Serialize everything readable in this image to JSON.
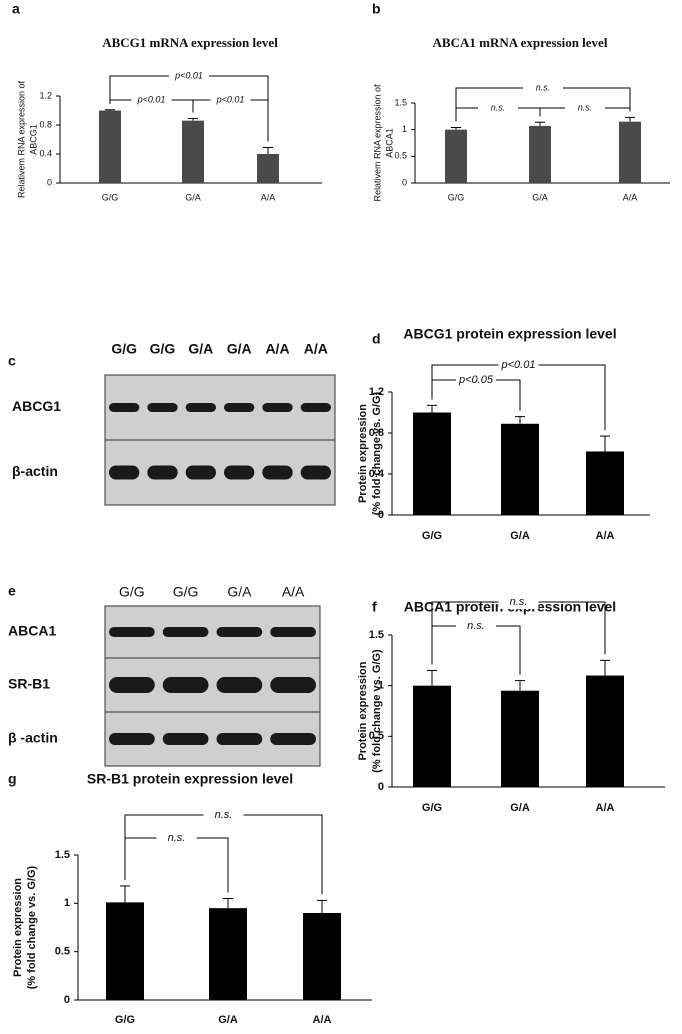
{
  "chart_data": [
    {
      "panel": "a",
      "type": "bar",
      "title": "ABCG1 mRNA expression level",
      "ylabel": [
        "Relativem RNA expression of",
        "ABCG1"
      ],
      "categories": [
        "G/G",
        "G/A",
        "A/A"
      ],
      "values": [
        1.0,
        0.86,
        0.4
      ],
      "errors": [
        0.01,
        0.03,
        0.09
      ],
      "color": "#4a4a4a",
      "ylim": [
        0,
        1.2
      ],
      "yticks": [
        0,
        0.4,
        0.8,
        1.2
      ],
      "comparisons": [
        {
          "label": "p<0.01",
          "from": 0,
          "to": 1
        },
        {
          "label": "p<0.01",
          "from": 1,
          "to": 2
        },
        {
          "label": "p<0.01",
          "from": 0,
          "to": 2
        }
      ]
    },
    {
      "panel": "b",
      "type": "bar",
      "title": "ABCA1 mRNA expression level",
      "ylabel": [
        "Relativem RNA expression of",
        "ABCA1"
      ],
      "categories": [
        "G/G",
        "G/A",
        "A/A"
      ],
      "values": [
        1.0,
        1.07,
        1.15
      ],
      "errors": [
        0.04,
        0.07,
        0.08
      ],
      "color": "#4a4a4a",
      "ylim": [
        0,
        1.5
      ],
      "yticks": [
        0,
        0.5,
        1,
        1.5
      ],
      "comparisons": [
        {
          "label": "n.s.",
          "from": 0,
          "to": 1
        },
        {
          "label": "n.s.",
          "from": 1,
          "to": 2
        },
        {
          "label": "n.s.",
          "from": 0,
          "to": 2
        }
      ]
    },
    {
      "panel": "d",
      "type": "bar",
      "title": "ABCG1 protein expression level",
      "ylabel": [
        "Protein expression",
        "(% fold change vs. G/G)"
      ],
      "categories": [
        "G/G",
        "G/A",
        "A/A"
      ],
      "values": [
        1.0,
        0.89,
        0.62
      ],
      "errors": [
        0.07,
        0.07,
        0.15
      ],
      "color": "#000000",
      "ylim": [
        0,
        1.2
      ],
      "yticks": [
        0,
        0.4,
        0.8,
        1.2
      ],
      "comparisons": [
        {
          "label": "p<0.05",
          "from": 0,
          "to": 1
        },
        {
          "label": "p<0.01",
          "from": 0,
          "to": 2
        }
      ]
    },
    {
      "panel": "f",
      "type": "bar",
      "title": "ABCA1 protein expression level",
      "ylabel": [
        "Protein expression",
        "(% fold change vs. G/G)"
      ],
      "categories": [
        "G/G",
        "G/A",
        "A/A"
      ],
      "values": [
        1.0,
        0.95,
        1.1
      ],
      "errors": [
        0.15,
        0.1,
        0.15
      ],
      "color": "#000000",
      "ylim": [
        0,
        1.5
      ],
      "yticks": [
        0,
        0.5,
        1,
        1.5
      ],
      "comparisons": [
        {
          "label": "n.s.",
          "from": 0,
          "to": 1
        },
        {
          "label": "n.s.",
          "from": 0,
          "to": 2
        }
      ]
    },
    {
      "panel": "g",
      "type": "bar",
      "title": "SR-B1 protein expression level",
      "ylabel": [
        "Protein expression",
        "(% fold change vs. G/G)"
      ],
      "categories": [
        "G/G",
        "G/A",
        "A/A"
      ],
      "values": [
        1.01,
        0.95,
        0.9
      ],
      "errors": [
        0.17,
        0.1,
        0.13
      ],
      "color": "#000000",
      "ylim": [
        0,
        1.5
      ],
      "yticks": [
        0,
        0.5,
        1,
        1.5
      ],
      "comparisons": [
        {
          "label": "n.s.",
          "from": 0,
          "to": 1
        },
        {
          "label": "n.s.",
          "from": 0,
          "to": 2
        }
      ]
    }
  ],
  "blots": [
    {
      "panel": "c",
      "lanes": [
        "G/G",
        "G/G",
        "G/A",
        "G/A",
        "A/A",
        "A/A"
      ],
      "rows": [
        "ABCG1",
        "β-actin"
      ]
    },
    {
      "panel": "e",
      "lanes": [
        "G/G",
        "G/G",
        "G/A",
        "A/A"
      ],
      "rows": [
        "ABCA1",
        "SR-B1",
        "β -actin"
      ]
    }
  ]
}
